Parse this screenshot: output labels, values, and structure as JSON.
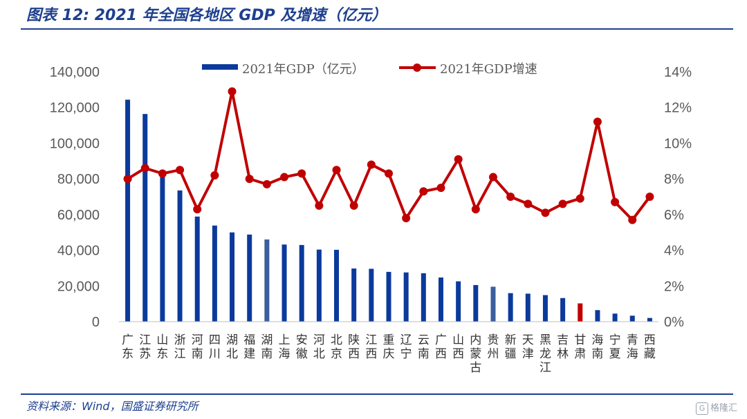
{
  "header": {
    "title": "图表 12:  2021 年全国各地区 GDP 及增速（亿元）"
  },
  "footer": {
    "source": "资料来源：Wind，国盛证券研究所"
  },
  "watermark": {
    "badge": "G",
    "text": "格隆汇"
  },
  "colors": {
    "bar": "#0b3a9c",
    "bar_alt": "#3b5f9e",
    "bar_highlight": "#c00000",
    "line": "#c00000",
    "text": "#1d3f8f",
    "axis": "#595959"
  },
  "chart_data": {
    "type": "bar",
    "categories": [
      "广东",
      "江苏",
      "山东",
      "浙江",
      "河南",
      "四川",
      "湖北",
      "福建",
      "湖南",
      "上海",
      "安徽",
      "河北",
      "北京",
      "陕西",
      "江西",
      "重庆",
      "辽宁",
      "云南",
      "广西",
      "山西",
      "内蒙古",
      "贵州",
      "新疆",
      "天津",
      "黑龙江",
      "吉林",
      "甘肃",
      "海南",
      "宁夏",
      "青海",
      "西藏"
    ],
    "category_labels": [
      [
        "广",
        "东"
      ],
      [
        "江",
        "苏"
      ],
      [
        "山",
        "东"
      ],
      [
        "浙",
        "江"
      ],
      [
        "河",
        "南"
      ],
      [
        "四",
        "川"
      ],
      [
        "湖",
        "北"
      ],
      [
        "福",
        "建"
      ],
      [
        "湖",
        "南"
      ],
      [
        "上",
        "海"
      ],
      [
        "安",
        "徽"
      ],
      [
        "河",
        "北"
      ],
      [
        "北",
        "京"
      ],
      [
        "陕",
        "西"
      ],
      [
        "江",
        "西"
      ],
      [
        "重",
        "庆"
      ],
      [
        "辽",
        "宁"
      ],
      [
        "云",
        "南"
      ],
      [
        "广",
        "西"
      ],
      [
        "山",
        "西"
      ],
      [
        "内",
        "蒙",
        "古"
      ],
      [
        "贵",
        "州"
      ],
      [
        "新",
        "疆"
      ],
      [
        "天",
        "津"
      ],
      [
        "黑",
        "龙",
        "江"
      ],
      [
        "吉",
        "林"
      ],
      [
        "甘",
        "肃"
      ],
      [
        "海",
        "南"
      ],
      [
        "宁",
        "夏"
      ],
      [
        "青",
        "海"
      ],
      [
        "西",
        "藏"
      ]
    ],
    "series": [
      {
        "name": "2021年GDP（亿元）",
        "type": "bar",
        "axis": "left",
        "values": [
          124370,
          116364,
          83096,
          73516,
          58887,
          53851,
          50013,
          48810,
          46063,
          43215,
          42959,
          40391,
          40270,
          29801,
          29620,
          27894,
          27584,
          27147,
          24741,
          22590,
          20514,
          19586,
          15984,
          15695,
          14879,
          13236,
          10243,
          6475,
          4522,
          3347,
          2080
        ]
      },
      {
        "name": "2021年GDP增速",
        "type": "line",
        "axis": "right",
        "values": [
          8.0,
          8.6,
          8.3,
          8.5,
          6.3,
          8.2,
          12.9,
          8.0,
          7.7,
          8.1,
          8.3,
          6.5,
          8.5,
          6.5,
          8.8,
          8.3,
          5.8,
          7.3,
          7.5,
          9.1,
          6.3,
          8.1,
          7.0,
          6.6,
          6.1,
          6.6,
          6.9,
          11.2,
          6.7,
          5.7,
          7.0
        ]
      }
    ],
    "bar_color_overrides": {
      "8": "bar_alt",
      "21": "bar_alt",
      "26": "bar_highlight"
    },
    "y_left": {
      "min": 0,
      "max": 140000,
      "ticks": [
        "0",
        "20,000",
        "40,000",
        "60,000",
        "80,000",
        "100,000",
        "120,000",
        "140,000"
      ]
    },
    "y_right": {
      "min": 0,
      "max": 14,
      "ticks": [
        "0%",
        "2%",
        "4%",
        "6%",
        "8%",
        "10%",
        "12%",
        "14%"
      ]
    },
    "legend_position": "top",
    "grid": false
  }
}
